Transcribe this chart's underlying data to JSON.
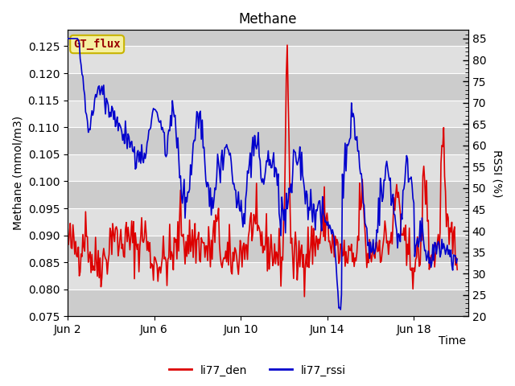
{
  "title": "Methane",
  "ylabel_left": "Methane (mmol/m3)",
  "ylabel_right": "RSSI (%)",
  "xlabel": "Time",
  "ylim_left": [
    0.075,
    0.128
  ],
  "ylim_right": [
    20,
    87
  ],
  "yticks_left": [
    0.075,
    0.08,
    0.085,
    0.09,
    0.095,
    0.1,
    0.105,
    0.11,
    0.115,
    0.12,
    0.125
  ],
  "yticks_right": [
    20,
    25,
    30,
    35,
    40,
    45,
    50,
    55,
    60,
    65,
    70,
    75,
    80,
    85
  ],
  "xtick_labels": [
    "Jun 2",
    "Jun 6",
    "Jun 10",
    "Jun 14",
    "Jun 18"
  ],
  "xtick_positions": [
    1,
    5,
    9,
    13,
    17
  ],
  "xlim": [
    1,
    19.5
  ],
  "legend_label_red": "li77_den",
  "legend_label_blue": "li77_rssi",
  "annotation_text": "GT_flux",
  "color_red": "#dd0000",
  "color_blue": "#0000cc",
  "bg_even": "#cccccc",
  "bg_odd": "#e0e0e0",
  "annotation_bg": "#f5f0a0",
  "annotation_border": "#c8b400",
  "line_width": 1.2,
  "title_fontsize": 12,
  "axis_fontsize": 10
}
